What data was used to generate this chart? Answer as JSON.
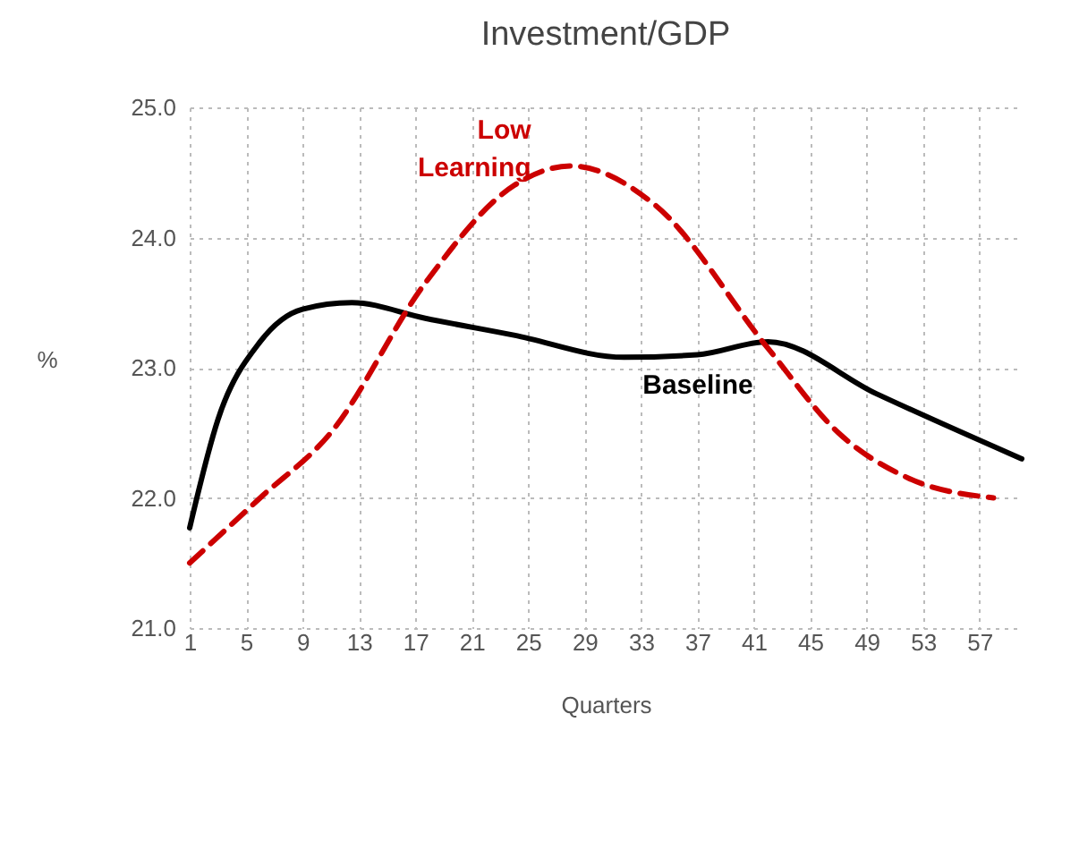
{
  "chart_data": {
    "type": "line",
    "title": "Investment/GDP",
    "xlabel": "Quarters",
    "ylabel": "%",
    "xlim": [
      1,
      60
    ],
    "xticks": [
      1,
      5,
      9,
      13,
      17,
      21,
      25,
      29,
      33,
      37,
      41,
      45,
      49,
      53,
      57
    ],
    "ylim": [
      21,
      25
    ],
    "yticks": [
      {
        "value": 21,
        "label": "21.0"
      },
      {
        "value": 22,
        "label": "22.0"
      },
      {
        "value": 23,
        "label": "23.0"
      },
      {
        "value": 24,
        "label": "24.0"
      },
      {
        "value": 25,
        "label": "25.0"
      }
    ],
    "grid": true,
    "legend": false,
    "series": [
      {
        "name": "Baseline",
        "color": "#000000",
        "line_style": "solid",
        "x": [
          1,
          3,
          6,
          9,
          12.5,
          17.7,
          24,
          31.8,
          37,
          42,
          49.7,
          60
        ],
        "values": [
          21.77,
          22.6,
          23.2,
          23.45,
          23.5,
          23.38,
          23.25,
          23.08,
          23.1,
          23.2,
          22.8,
          22.3
        ]
      },
      {
        "name": "Low Learning",
        "color": "#cc0000",
        "line_style": "dashed",
        "x": [
          1,
          6,
          11,
          17.7,
          24,
          28,
          34,
          42,
          47,
          52,
          58
        ],
        "values": [
          21.5,
          22.0,
          22.5,
          23.65,
          24.4,
          24.55,
          24.25,
          23.15,
          22.5,
          22.15,
          22.0
        ]
      }
    ]
  }
}
